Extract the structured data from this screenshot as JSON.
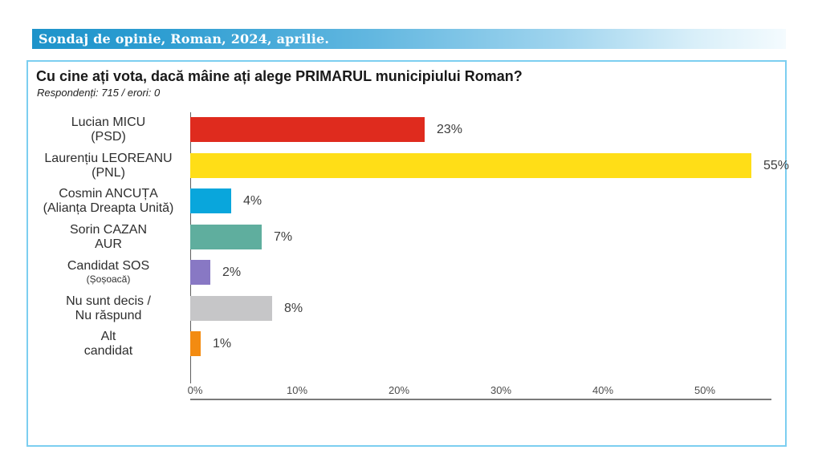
{
  "banner": {
    "text": "Sondaj de opinie, Roman, 2024, aprilie.",
    "gradient_start": "#1d93ca",
    "gradient_end": "#f4fbfe",
    "text_color": "#ffffff"
  },
  "panel": {
    "border_color": "#7ccef0"
  },
  "chart_data": {
    "type": "bar",
    "orientation": "horizontal",
    "title": "Cu cine ați vota, dacă mâine ați alege PRIMARUL municipiului Roman?",
    "subtitle": "Respondenți: 715 / erori: 0",
    "categories": [
      {
        "line1": "Lucian MICU",
        "line2": "(PSD)",
        "line2_small": false
      },
      {
        "line1": "Laurențiu LEOREANU",
        "line2": "(PNL)",
        "line2_small": false
      },
      {
        "line1": "Cosmin ANCUȚA",
        "line2": "(Alianța Dreapta Unită)",
        "line2_small": false
      },
      {
        "line1": "Sorin CAZAN",
        "line2": "AUR",
        "line2_small": false
      },
      {
        "line1": "Candidat SOS",
        "line2": "(Șoșoacă)",
        "line2_small": true
      },
      {
        "line1": "Nu sunt decis /",
        "line2": "Nu răspund",
        "line2_small": false
      },
      {
        "line1": "Alt",
        "line2": "candidat",
        "line2_small": false
      }
    ],
    "values": [
      23,
      55,
      4,
      7,
      2,
      8,
      1
    ],
    "value_labels": [
      "23%",
      "55%",
      "4%",
      "7%",
      "2%",
      "8%",
      "1%"
    ],
    "bar_colors": [
      "#df2b1e",
      "#ffde17",
      "#09a6dc",
      "#5fae9e",
      "#8878c4",
      "#c6c6c8",
      "#f38b11"
    ],
    "x_ticks": [
      "0%",
      "10%",
      "20%",
      "30%",
      "40%",
      "50%"
    ],
    "x_tick_values": [
      0,
      10,
      20,
      30,
      40,
      50
    ],
    "xlim": [
      0,
      57
    ],
    "grid": false,
    "legend": false
  }
}
